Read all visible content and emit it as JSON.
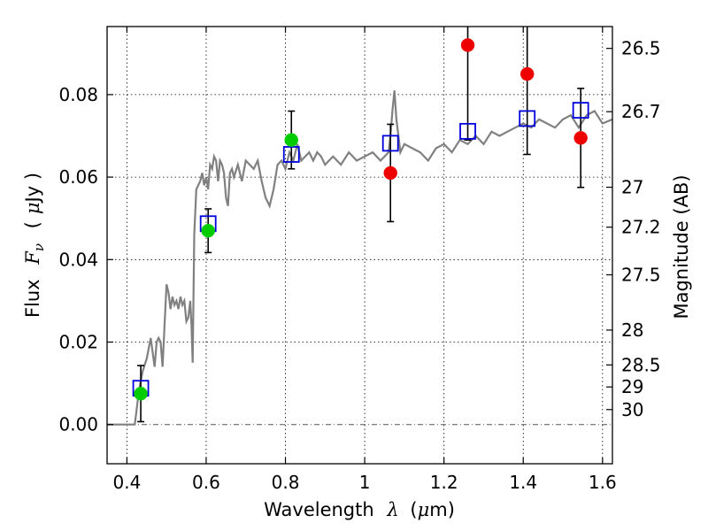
{
  "chart_data": {
    "type": "scatter",
    "title": "",
    "xlabel": {
      "prefix": "Wavelength",
      "symbol": "λ",
      "unit_open": "(",
      "unit": "μ",
      "unit_rest": "m)"
    },
    "ylabel": {
      "prefix": "Flux",
      "symbol": "F",
      "sub": "ν",
      "unit_open": "(",
      "unit": "μ",
      "unit_rest": "Jy )"
    },
    "y2label": "Magnitude (AB)",
    "xlim": [
      0.35,
      1.625
    ],
    "ylim": [
      -0.0095,
      0.0965
    ],
    "grid": true,
    "x_ticks": [
      {
        "value": 0.4,
        "label": "0.4"
      },
      {
        "value": 0.6,
        "label": "0.6"
      },
      {
        "value": 0.8,
        "label": "0.8"
      },
      {
        "value": 1.0,
        "label": "1"
      },
      {
        "value": 1.2,
        "label": "1.2"
      },
      {
        "value": 1.4,
        "label": "1.4"
      },
      {
        "value": 1.6,
        "label": "1.6"
      }
    ],
    "y_ticks": [
      {
        "value": 0.0,
        "label": "0.00"
      },
      {
        "value": 0.02,
        "label": "0.02"
      },
      {
        "value": 0.04,
        "label": "0.04"
      },
      {
        "value": 0.06,
        "label": "0.06"
      },
      {
        "value": 0.08,
        "label": "0.08"
      }
    ],
    "y2_ticks": [
      {
        "mag": 26.5,
        "label": "26.5"
      },
      {
        "mag": 26.7,
        "label": "26.7"
      },
      {
        "mag": 27.0,
        "label": "27"
      },
      {
        "mag": 27.2,
        "label": "27.2"
      },
      {
        "mag": 27.5,
        "label": "27.5"
      },
      {
        "mag": 28.0,
        "label": "28"
      },
      {
        "mag": 28.5,
        "label": "28.5"
      },
      {
        "mag": 29.0,
        "label": "29"
      },
      {
        "mag": 30.0,
        "label": "30"
      }
    ],
    "model_spectrum": {
      "name": "model SED",
      "color": "#808080",
      "x": [
        0.35,
        0.42,
        0.425,
        0.43,
        0.44,
        0.45,
        0.46,
        0.47,
        0.475,
        0.48,
        0.485,
        0.49,
        0.495,
        0.5,
        0.505,
        0.51,
        0.515,
        0.52,
        0.525,
        0.53,
        0.535,
        0.54,
        0.545,
        0.55,
        0.555,
        0.56,
        0.563,
        0.566,
        0.57,
        0.575,
        0.58,
        0.585,
        0.59,
        0.595,
        0.6,
        0.605,
        0.61,
        0.615,
        0.62,
        0.625,
        0.63,
        0.635,
        0.64,
        0.645,
        0.65,
        0.655,
        0.66,
        0.665,
        0.67,
        0.68,
        0.69,
        0.7,
        0.71,
        0.72,
        0.73,
        0.74,
        0.75,
        0.76,
        0.77,
        0.78,
        0.79,
        0.8,
        0.81,
        0.82,
        0.83,
        0.84,
        0.85,
        0.86,
        0.87,
        0.88,
        0.89,
        0.9,
        0.92,
        0.94,
        0.96,
        0.98,
        1.0,
        1.02,
        1.04,
        1.06,
        1.065,
        1.07,
        1.075,
        1.08,
        1.085,
        1.09,
        1.1,
        1.12,
        1.14,
        1.16,
        1.18,
        1.2,
        1.22,
        1.24,
        1.26,
        1.28,
        1.3,
        1.32,
        1.34,
        1.36,
        1.38,
        1.4,
        1.42,
        1.44,
        1.46,
        1.48,
        1.5,
        1.52,
        1.54,
        1.56,
        1.58,
        1.6,
        1.625
      ],
      "y": [
        0.0,
        0.0,
        0.004,
        0.008,
        0.013,
        0.016,
        0.021,
        0.014,
        0.02,
        0.021,
        0.02,
        0.014,
        0.024,
        0.034,
        0.032,
        0.028,
        0.031,
        0.029,
        0.03,
        0.028,
        0.031,
        0.029,
        0.03,
        0.025,
        0.026,
        0.03,
        0.024,
        0.015,
        0.046,
        0.057,
        0.058,
        0.059,
        0.061,
        0.058,
        0.06,
        0.057,
        0.063,
        0.062,
        0.065,
        0.064,
        0.059,
        0.064,
        0.063,
        0.061,
        0.055,
        0.053,
        0.061,
        0.062,
        0.06,
        0.063,
        0.059,
        0.064,
        0.063,
        0.062,
        0.064,
        0.059,
        0.055,
        0.053,
        0.057,
        0.063,
        0.064,
        0.062,
        0.066,
        0.064,
        0.068,
        0.064,
        0.065,
        0.066,
        0.064,
        0.066,
        0.065,
        0.063,
        0.065,
        0.063,
        0.066,
        0.064,
        0.065,
        0.066,
        0.064,
        0.066,
        0.07,
        0.076,
        0.081,
        0.074,
        0.07,
        0.066,
        0.068,
        0.067,
        0.066,
        0.064,
        0.067,
        0.068,
        0.066,
        0.069,
        0.068,
        0.07,
        0.068,
        0.071,
        0.07,
        0.071,
        0.072,
        0.073,
        0.072,
        0.074,
        0.073,
        0.072,
        0.074,
        0.075,
        0.072,
        0.075,
        0.076,
        0.073,
        0.074
      ]
    },
    "series": [
      {
        "name": "model photometry",
        "marker": "open-square",
        "color": "#0000dd",
        "x": [
          0.435,
          0.605,
          0.815,
          1.065,
          1.26,
          1.41,
          1.545
        ],
        "y": [
          0.0088,
          0.0487,
          0.0655,
          0.0682,
          0.0711,
          0.0742,
          0.0762
        ]
      },
      {
        "name": "detections (green)",
        "marker": "filled-circle",
        "color": "#00cc00",
        "x": [
          0.435,
          0.605,
          0.815
        ],
        "y": [
          0.0075,
          0.047,
          0.069
        ],
        "yerr": [
          0.0068,
          0.0053,
          0.007
        ]
      },
      {
        "name": "detections (red)",
        "marker": "filled-circle",
        "color": "#ee0000",
        "x": [
          1.065,
          1.26,
          1.41,
          1.545
        ],
        "y": [
          0.061,
          0.092,
          0.085,
          0.0695
        ],
        "yerr": [
          0.0118,
          0.023,
          0.0195,
          0.012
        ]
      }
    ]
  }
}
